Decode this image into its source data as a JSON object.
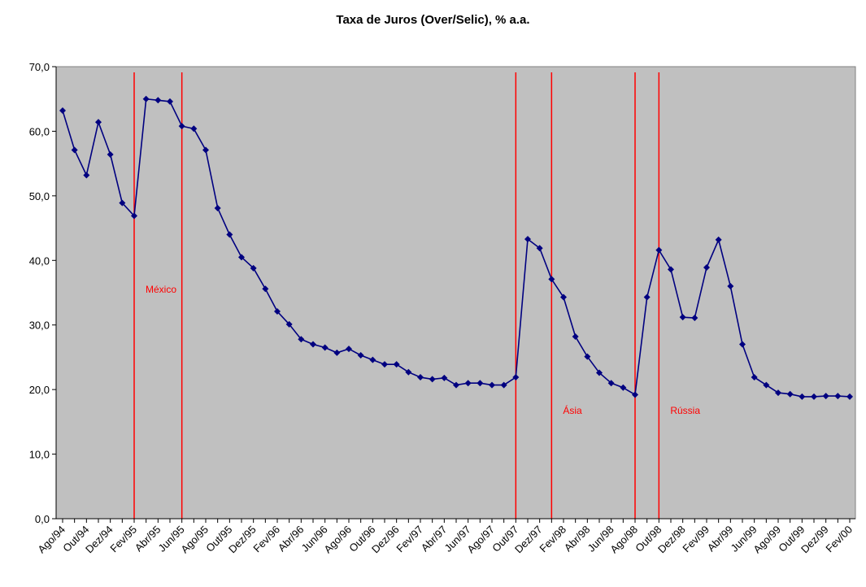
{
  "chart_data": {
    "type": "line",
    "title": "Taxa de Juros (Over/Selic), % a.a.",
    "xlabel": "",
    "ylabel": "",
    "ylim": [
      0,
      70
    ],
    "yticks": [
      "0,0",
      "10,0",
      "20,0",
      "30,0",
      "40,0",
      "50,0",
      "60,0",
      "70,0"
    ],
    "grid": false,
    "x": [
      "Ago/94",
      "Set/94",
      "Out/94",
      "Nov/94",
      "Dez/94",
      "Jan/95",
      "Fev/95",
      "Mar/95",
      "Abr/95",
      "Mai/95",
      "Jun/95",
      "Jul/95",
      "Ago/95",
      "Set/95",
      "Out/95",
      "Nov/95",
      "Dez/95",
      "Jan/96",
      "Fev/96",
      "Mar/96",
      "Abr/96",
      "Mai/96",
      "Jun/96",
      "Jul/96",
      "Ago/96",
      "Set/96",
      "Out/96",
      "Nov/96",
      "Dez/96",
      "Jan/97",
      "Fev/97",
      "Mar/97",
      "Abr/97",
      "Mai/97",
      "Jun/97",
      "Jul/97",
      "Ago/97",
      "Set/97",
      "Out/97",
      "Nov/97",
      "Dez/97",
      "Jan/98",
      "Fev/98",
      "Mar/98",
      "Abr/98",
      "Mai/98",
      "Jun/98",
      "Jul/98",
      "Ago/98",
      "Set/98",
      "Out/98",
      "Nov/98",
      "Dez/98",
      "Jan/99",
      "Fev/99",
      "Mar/99",
      "Abr/99",
      "Mai/99",
      "Jun/99",
      "Jul/99",
      "Ago/99",
      "Set/99",
      "Out/99",
      "Nov/99",
      "Dez/99",
      "Jan/00",
      "Fev/00"
    ],
    "xtick_labels": [
      "Ago/94",
      "Out/94",
      "Dez/94",
      "Fev/95",
      "Abr/95",
      "Jun/95",
      "Ago/95",
      "Out/95",
      "Dez/95",
      "Fev/96",
      "Abr/96",
      "Jun/96",
      "Ago/96",
      "Out/96",
      "Dez/96",
      "Fev/97",
      "Abr/97",
      "Jun/97",
      "Ago/97",
      "Out/97",
      "Dez/97",
      "Fev/98",
      "Abr/98",
      "Jun/98",
      "Ago/98",
      "Out/98",
      "Dez/98",
      "Fev/99",
      "Abr/99",
      "Jun/99",
      "Ago/99",
      "Out/99",
      "Dez/99",
      "Fev/00"
    ],
    "series": [
      {
        "name": "",
        "color": "#000080",
        "values": [
          63.2,
          57.1,
          53.2,
          61.4,
          56.4,
          48.9,
          46.9,
          65.0,
          64.8,
          64.6,
          60.8,
          60.4,
          57.1,
          48.1,
          44.0,
          40.5,
          38.8,
          35.6,
          32.1,
          30.1,
          27.8,
          27.0,
          26.5,
          25.7,
          26.3,
          25.3,
          24.6,
          23.9,
          23.9,
          22.7,
          21.9,
          21.6,
          21.8,
          20.7,
          21.0,
          21.0,
          20.7,
          20.7,
          21.9,
          43.3,
          41.9,
          37.1,
          34.3,
          28.2,
          25.1,
          22.6,
          21.0,
          20.3,
          19.2,
          34.3,
          41.6,
          38.6,
          31.2,
          31.1,
          38.9,
          43.2,
          36.0,
          27.0,
          21.9,
          20.7,
          19.5,
          19.3,
          18.9,
          18.9,
          19.0,
          19.0,
          18.9
        ]
      }
    ],
    "annotations": [
      {
        "label": "México",
        "at": "Fev/95"
      },
      {
        "label": "",
        "at": "Jun/95"
      },
      {
        "label": "",
        "at": "Out/97"
      },
      {
        "label": "Ásia",
        "at": "Jan/98"
      },
      {
        "label": "",
        "at": "Ago/98"
      },
      {
        "label": "Rússia",
        "at": "Out/98"
      }
    ],
    "colors": {
      "plot_background": "#c0c0c0",
      "line": "#000080",
      "marker": "#000080",
      "event_line": "#ff0000",
      "event_label": "#ff0000"
    }
  }
}
